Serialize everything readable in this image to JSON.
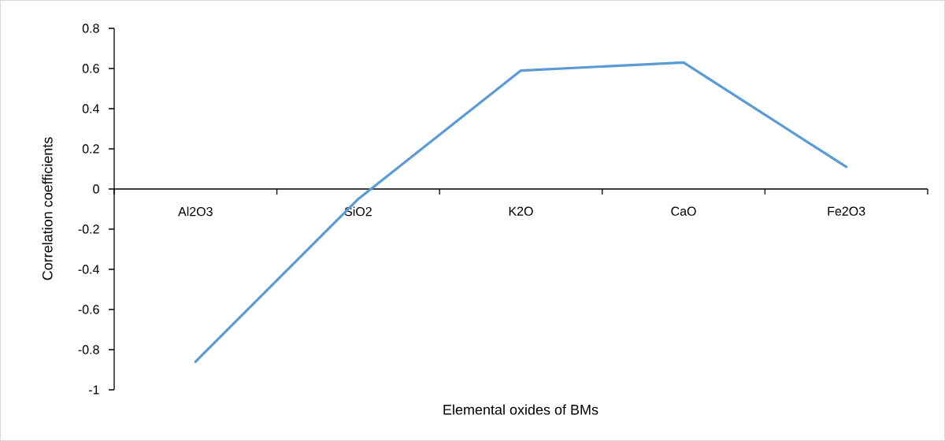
{
  "chart_data": {
    "type": "line",
    "xlabel": "Elemental oxides of BMs",
    "ylabel": "Correlation coefficients",
    "categories": [
      "Al2O3",
      "SiO2",
      "K2O",
      "CaO",
      "Fe2O3"
    ],
    "values": [
      -0.86,
      -0.05,
      0.59,
      0.63,
      0.11
    ],
    "color": "#5b9bd5",
    "marker": "none",
    "line_style": "solid",
    "ylim": [
      -1,
      0.8
    ],
    "yticks": [
      -1,
      -0.8,
      -0.6,
      -0.4,
      -0.2,
      0,
      0.2,
      0.4,
      0.6,
      0.8
    ]
  }
}
